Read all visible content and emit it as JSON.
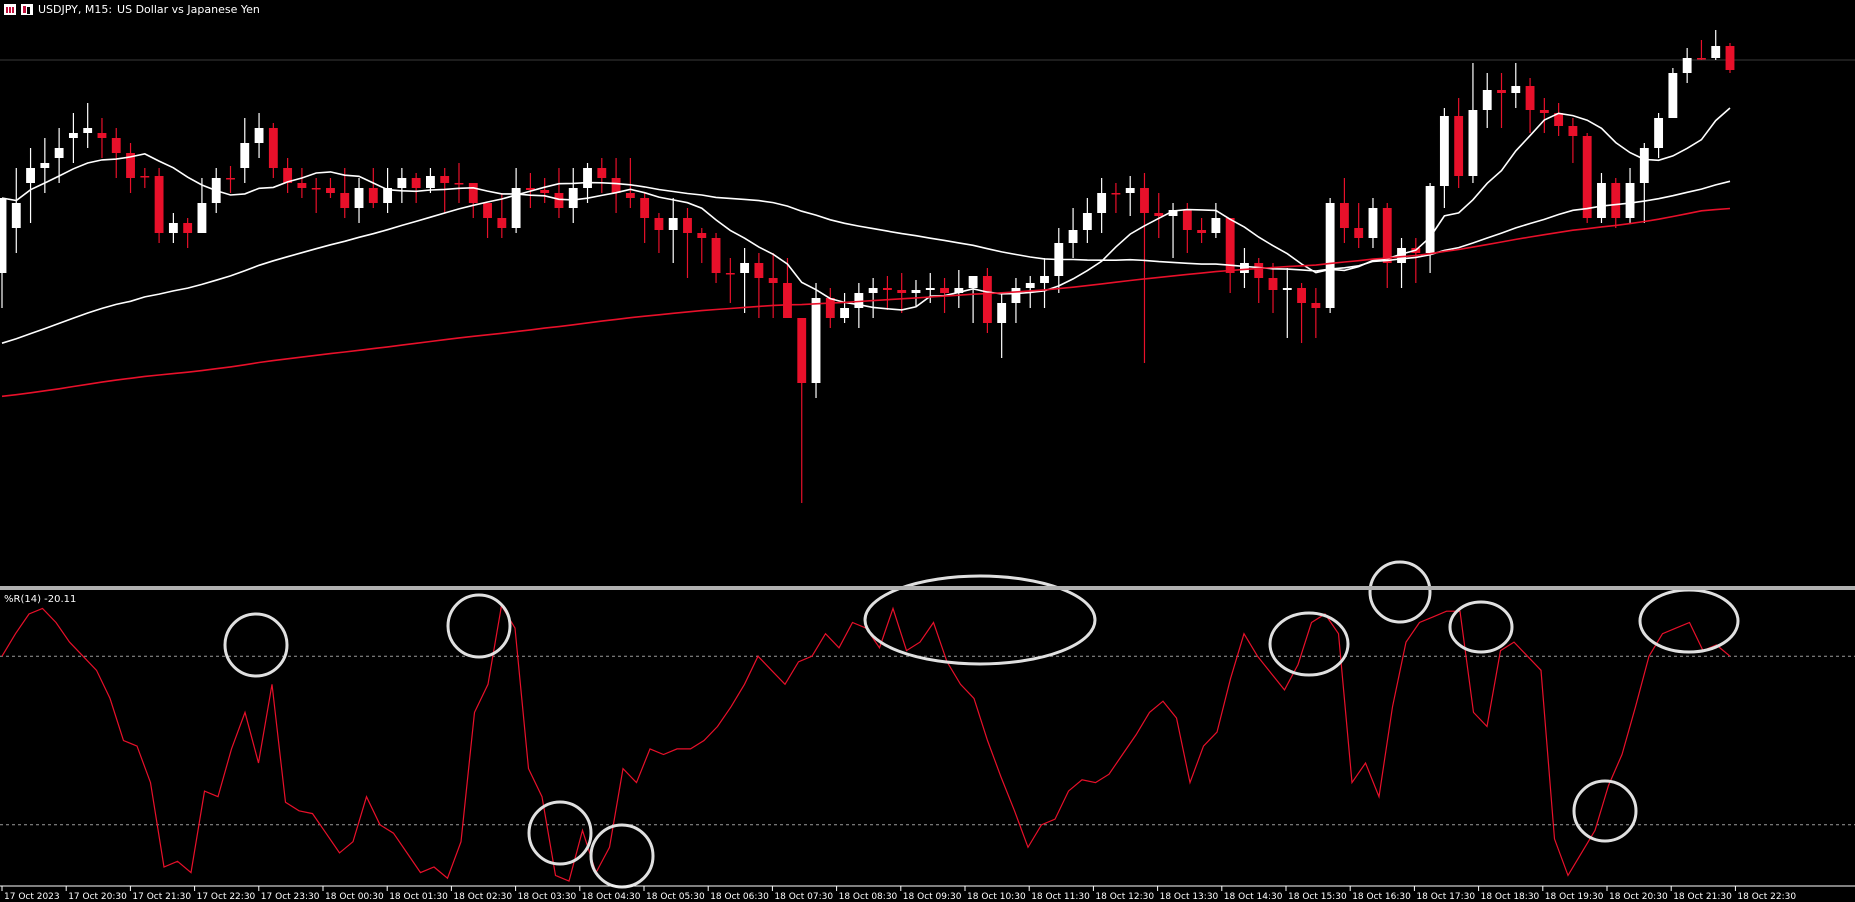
{
  "header": {
    "symbol_period": "USDJPY, M15:",
    "description": "US Dollar vs Japanese Yen"
  },
  "indicator": {
    "label": "%R(14) -20.11"
  },
  "colors": {
    "background": "#000000",
    "bull_candle": "#ffffff",
    "bear_candle": "#e8102a",
    "ma_fast": "#ffffff",
    "ma_mid": "#ffffff",
    "ma_slow": "#e8102a",
    "wpr_line": "#e8102a",
    "highlight_circle": "#e0e0e0"
  },
  "icons": [
    "calendar-icon",
    "chart-candle-icon"
  ],
  "chart_data": [
    {
      "type": "candlestick",
      "symbol": "USDJPY",
      "timeframe": "M15",
      "y_scale": "price (no tick labels visible)",
      "time_labels": [
        "17 Oct 2023",
        "17 Oct 20:30",
        "17 Oct 21:30",
        "17 Oct 22:30",
        "17 Oct 23:30",
        "18 Oct 00:30",
        "18 Oct 01:30",
        "18 Oct 02:30",
        "18 Oct 03:30",
        "18 Oct 04:30",
        "18 Oct 05:30",
        "18 Oct 06:30",
        "18 Oct 07:30",
        "18 Oct 08:30",
        "18 Oct 09:30",
        "18 Oct 10:30",
        "18 Oct 11:30",
        "18 Oct 12:30",
        "18 Oct 13:30",
        "18 Oct 14:30",
        "18 Oct 15:30",
        "18 Oct 16:30",
        "18 Oct 17:30",
        "18 Oct 18:30",
        "18 Oct 19:30",
        "18 Oct 20:30",
        "18 Oct 21:30",
        "18 Oct 22:30"
      ],
      "candles_ohlc_screen_relative": [
        [
          255,
          180,
          180,
          290
        ],
        [
          210,
          185,
          150,
          235
        ],
        [
          165,
          150,
          130,
          205
        ],
        [
          150,
          145,
          120,
          175
        ],
        [
          140,
          130,
          110,
          165
        ],
        [
          120,
          115,
          95,
          145
        ],
        [
          115,
          110,
          85,
          130
        ],
        [
          115,
          120,
          100,
          140
        ],
        [
          120,
          135,
          110,
          160
        ],
        [
          135,
          160,
          125,
          175
        ],
        [
          158,
          158,
          150,
          170
        ],
        [
          158,
          215,
          150,
          225
        ],
        [
          215,
          205,
          195,
          225
        ],
        [
          205,
          215,
          200,
          230
        ],
        [
          215,
          185,
          160,
          215
        ],
        [
          185,
          160,
          150,
          195
        ],
        [
          160,
          160,
          148,
          175
        ],
        [
          150,
          125,
          100,
          165
        ],
        [
          125,
          110,
          95,
          140
        ],
        [
          110,
          150,
          105,
          160
        ],
        [
          150,
          165,
          140,
          175
        ],
        [
          165,
          170,
          150,
          180
        ],
        [
          170,
          170,
          160,
          195
        ],
        [
          170,
          175,
          160,
          180
        ],
        [
          175,
          190,
          150,
          200
        ],
        [
          190,
          170,
          160,
          205
        ],
        [
          170,
          185,
          150,
          190
        ],
        [
          185,
          170,
          150,
          195
        ],
        [
          170,
          160,
          150,
          185
        ],
        [
          160,
          170,
          155,
          185
        ],
        [
          170,
          158,
          150,
          175
        ],
        [
          158,
          165,
          150,
          195
        ],
        [
          165,
          165,
          145,
          185
        ],
        [
          165,
          185,
          170,
          200
        ],
        [
          185,
          200,
          185,
          220
        ],
        [
          200,
          210,
          175,
          220
        ],
        [
          210,
          170,
          150,
          215
        ],
        [
          170,
          172,
          155,
          190
        ],
        [
          172,
          175,
          160,
          185
        ],
        [
          175,
          190,
          150,
          200
        ],
        [
          190,
          170,
          150,
          205
        ],
        [
          170,
          150,
          145,
          185
        ],
        [
          150,
          160,
          140,
          175
        ],
        [
          160,
          175,
          140,
          195
        ],
        [
          175,
          180,
          140,
          190
        ],
        [
          180,
          200,
          175,
          225
        ],
        [
          200,
          212,
          195,
          235
        ],
        [
          212,
          200,
          180,
          245
        ],
        [
          200,
          215,
          190,
          260
        ],
        [
          215,
          220,
          210,
          245
        ],
        [
          220,
          255,
          215,
          265
        ],
        [
          255,
          255,
          240,
          285
        ],
        [
          255,
          245,
          230,
          295
        ],
        [
          245,
          260,
          235,
          300
        ],
        [
          260,
          265,
          235,
          300
        ],
        [
          265,
          300,
          240,
          300
        ],
        [
          300,
          365,
          300,
          485
        ],
        [
          365,
          280,
          265,
          380
        ],
        [
          280,
          300,
          270,
          310
        ],
        [
          300,
          290,
          275,
          305
        ],
        [
          290,
          275,
          265,
          310
        ],
        [
          275,
          270,
          260,
          300
        ],
        [
          270,
          272,
          258,
          292
        ],
        [
          272,
          275,
          255,
          295
        ],
        [
          275,
          272,
          262,
          288
        ],
        [
          272,
          270,
          255,
          285
        ],
        [
          270,
          275,
          260,
          295
        ],
        [
          275,
          270,
          252,
          290
        ],
        [
          270,
          258,
          258,
          305
        ],
        [
          258,
          305,
          250,
          315
        ],
        [
          305,
          285,
          275,
          340
        ],
        [
          285,
          270,
          260,
          305
        ],
        [
          270,
          265,
          258,
          290
        ],
        [
          265,
          258,
          240,
          290
        ],
        [
          258,
          225,
          210,
          275
        ],
        [
          225,
          212,
          190,
          240
        ],
        [
          212,
          195,
          180,
          225
        ],
        [
          195,
          175,
          160,
          215
        ],
        [
          175,
          175,
          165,
          195
        ],
        [
          175,
          170,
          158,
          198
        ],
        [
          170,
          195,
          155,
          345
        ],
        [
          195,
          198,
          175,
          220
        ],
        [
          198,
          192,
          185,
          240
        ],
        [
          192,
          212,
          185,
          235
        ],
        [
          212,
          215,
          200,
          225
        ],
        [
          215,
          200,
          185,
          220
        ],
        [
          200,
          255,
          200,
          275
        ],
        [
          255,
          245,
          230,
          270
        ],
        [
          245,
          260,
          240,
          285
        ],
        [
          260,
          272,
          245,
          295
        ],
        [
          272,
          270,
          250,
          320
        ],
        [
          270,
          285,
          265,
          325
        ],
        [
          285,
          290,
          270,
          320
        ],
        [
          290,
          185,
          180,
          295
        ],
        [
          185,
          210,
          160,
          225
        ],
        [
          210,
          220,
          185,
          230
        ],
        [
          220,
          190,
          180,
          230
        ],
        [
          190,
          245,
          185,
          270
        ],
        [
          245,
          230,
          220,
          270
        ],
        [
          230,
          235,
          220,
          265
        ],
        [
          235,
          168,
          165,
          255
        ],
        [
          168,
          98,
          90,
          190
        ],
        [
          98,
          158,
          80,
          170
        ],
        [
          158,
          92,
          45,
          165
        ],
        [
          92,
          72,
          55,
          110
        ],
        [
          72,
          75,
          55,
          110
        ],
        [
          75,
          68,
          45,
          90
        ],
        [
          68,
          92,
          60,
          115
        ],
        [
          92,
          95,
          80,
          115
        ],
        [
          95,
          108,
          85,
          118
        ],
        [
          108,
          118,
          100,
          145
        ],
        [
          118,
          200,
          115,
          205
        ],
        [
          200,
          165,
          155,
          205
        ],
        [
          165,
          200,
          160,
          210
        ],
        [
          200,
          165,
          150,
          205
        ],
        [
          165,
          130,
          125,
          205
        ],
        [
          130,
          100,
          95,
          140
        ],
        [
          100,
          55,
          50,
          100
        ],
        [
          55,
          40,
          30,
          65
        ],
        [
          40,
          40,
          22,
          42
        ],
        [
          40,
          28,
          12,
          42
        ],
        [
          28,
          52,
          25,
          55
        ]
      ],
      "moving_averages": [
        {
          "name": "MA fast",
          "color": "#ffffff"
        },
        {
          "name": "MA mid",
          "color": "#ffffff"
        },
        {
          "name": "MA slow",
          "color": "#e8102a"
        }
      ]
    },
    {
      "type": "line",
      "indicator": "%R(14)",
      "last_value": -20.11,
      "ylim": [
        -100,
        0
      ],
      "levels": [
        -20,
        -80
      ],
      "values": [
        -20,
        -12,
        -5,
        -3,
        -8,
        -15,
        -20,
        -25,
        -35,
        -50,
        -52,
        -65,
        -95,
        -93,
        -97,
        -68,
        -70,
        -53,
        -40,
        -58,
        -30,
        -72,
        -75,
        -76,
        -83,
        -90,
        -86,
        -70,
        -80,
        -83,
        -90,
        -97,
        -95,
        -99,
        -86,
        -40,
        -30,
        -2,
        -10,
        -60,
        -70,
        -98,
        -100,
        -82,
        -97,
        -88,
        -60,
        -65,
        -53,
        -55,
        -53,
        -53,
        -50,
        -45,
        -38,
        -30,
        -20,
        -25,
        -30,
        -22,
        -20,
        -12,
        -17,
        -8,
        -10,
        -17,
        -3,
        -18,
        -15,
        -8,
        -22,
        -30,
        -35,
        -50,
        -63,
        -75,
        -88,
        -80,
        -78,
        -68,
        -64,
        -65,
        -62,
        -55,
        -48,
        -40,
        -36,
        -42,
        -65,
        -52,
        -47,
        -28,
        -12,
        -20,
        -26,
        -32,
        -23,
        -8,
        -5,
        -12,
        -65,
        -58,
        -70,
        -38,
        -15,
        -8,
        -6,
        -4,
        -4,
        -40,
        -45,
        -18,
        -15,
        -20,
        -25,
        -85,
        -98,
        -90,
        -82,
        -66,
        -55,
        -38,
        -20,
        -12,
        -10,
        -8,
        -18,
        -16,
        -20
      ]
    }
  ]
}
